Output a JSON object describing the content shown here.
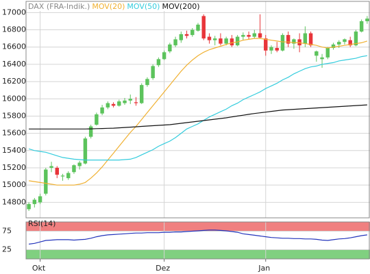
{
  "chart_data": [
    {
      "type": "candlestick",
      "categories": [
        null,
        null,
        "Okt",
        null,
        null,
        null,
        null,
        null,
        null,
        null,
        null,
        null,
        null,
        null,
        null,
        null,
        null,
        null,
        null,
        null,
        null,
        null,
        null,
        null,
        "Dez",
        null,
        null,
        null,
        null,
        null,
        null,
        null,
        null,
        null,
        null,
        null,
        null,
        null,
        null,
        null,
        null,
        null,
        "Jan",
        null,
        null,
        null,
        null,
        null,
        null,
        null,
        null,
        null,
        null,
        null,
        null,
        null,
        null,
        null,
        null,
        null,
        null
      ],
      "ohlc": {
        "name": "DAX (FRA-Indik.)",
        "color": "#888888",
        "up_color": "#5cc35c",
        "down_color": "#e8353a",
        "open": [
          14720,
          14780,
          14800,
          14900,
          15200,
          15200,
          15100,
          15080,
          15150,
          15220,
          15250,
          15560,
          15700,
          15830,
          15900,
          15940,
          15920,
          15950,
          15980,
          15960,
          15950,
          16160,
          16240,
          16390,
          16460,
          16550,
          16620,
          16680,
          16750,
          16740,
          16790,
          16960,
          16720,
          16680,
          16700,
          16640,
          16700,
          16620,
          16720,
          16740,
          16720,
          16760,
          16700,
          16560,
          16590,
          16560,
          16740,
          16640,
          16690,
          16640,
          16760,
          16500,
          16460,
          16480,
          16590,
          16630,
          16660,
          16680,
          16620,
          16780,
          16900
        ],
        "high": [
          14800,
          14850,
          14900,
          15200,
          15270,
          15220,
          15130,
          15160,
          15240,
          15280,
          15560,
          15700,
          15840,
          15930,
          15970,
          15960,
          15990,
          16010,
          16050,
          16020,
          16180,
          16250,
          16400,
          16480,
          16560,
          16650,
          16720,
          16780,
          16790,
          16820,
          16880,
          16980,
          16760,
          16730,
          16760,
          16720,
          16740,
          16740,
          16770,
          16780,
          16800,
          16980,
          16740,
          16620,
          16660,
          16760,
          16780,
          16700,
          16760,
          16840,
          16780,
          16560,
          16520,
          16600,
          16650,
          16680,
          16700,
          16720,
          16800,
          16920,
          16960
        ],
        "low": [
          14700,
          14740,
          14780,
          14880,
          15150,
          15080,
          15050,
          15060,
          15130,
          15180,
          15240,
          15540,
          15690,
          15810,
          15880,
          15900,
          15910,
          15930,
          15940,
          15920,
          15940,
          16140,
          16220,
          16370,
          16450,
          16530,
          16600,
          16650,
          16700,
          16720,
          16780,
          16680,
          16640,
          16620,
          16620,
          16620,
          16600,
          16610,
          16680,
          16690,
          16700,
          16700,
          16500,
          16520,
          16540,
          16550,
          16600,
          16580,
          16540,
          16600,
          16600,
          16430,
          16360,
          16460,
          16570,
          16590,
          16630,
          16600,
          16610,
          16770,
          16870
        ],
        "close": [
          14780,
          14830,
          14870,
          15180,
          15220,
          15120,
          15110,
          15140,
          15230,
          15260,
          15540,
          15680,
          15820,
          15900,
          15950,
          15920,
          15970,
          15980,
          16000,
          15950,
          16160,
          16230,
          16380,
          16460,
          16540,
          16630,
          16690,
          16750,
          16730,
          16800,
          16860,
          16700,
          16680,
          16700,
          16640,
          16700,
          16620,
          16720,
          16740,
          16720,
          16760,
          16710,
          16560,
          16600,
          16560,
          16740,
          16640,
          16690,
          16620,
          16760,
          16620,
          16550,
          16480,
          16590,
          16630,
          16660,
          16690,
          16620,
          16780,
          16900,
          16930
        ]
      },
      "series": [
        {
          "name": "MOV(20)",
          "color": "#f0b030",
          "values": [
            15050,
            15040,
            15030,
            15020,
            15010,
            15000,
            15000,
            15000,
            15000,
            15010,
            15030,
            15080,
            15140,
            15210,
            15290,
            15370,
            15450,
            15530,
            15610,
            15680,
            15760,
            15840,
            15920,
            16000,
            16080,
            16160,
            16240,
            16320,
            16390,
            16450,
            16500,
            16540,
            16570,
            16590,
            16610,
            16630,
            16650,
            16660,
            16680,
            16690,
            16700,
            16700,
            16690,
            16680,
            16670,
            16660,
            16660,
            16650,
            16650,
            16640,
            16630,
            16620,
            16600,
            16590,
            16600,
            16610,
            16620,
            16630,
            16640,
            16650,
            16670
          ]
        },
        {
          "name": "MOV(50)",
          "color": "#33ccdd",
          "values": [
            15420,
            15400,
            15390,
            15380,
            15360,
            15340,
            15320,
            15310,
            15300,
            15295,
            15290,
            15290,
            15290,
            15290,
            15290,
            15290,
            15290,
            15295,
            15300,
            15320,
            15350,
            15380,
            15410,
            15450,
            15480,
            15510,
            15550,
            15600,
            15650,
            15680,
            15710,
            15750,
            15790,
            15820,
            15850,
            15880,
            15920,
            15950,
            15990,
            16020,
            16050,
            16080,
            16120,
            16150,
            16180,
            16220,
            16250,
            16290,
            16320,
            16350,
            16370,
            16380,
            16400,
            16410,
            16420,
            16440,
            16450,
            16460,
            16470,
            16490,
            16500
          ]
        },
        {
          "name": "MOV(200)",
          "color": "#111111",
          "values": [
            15650,
            15650,
            15650,
            15650,
            15650,
            15650,
            15650,
            15650,
            15650,
            15650,
            15650,
            15652,
            15654,
            15656,
            15658,
            15660,
            15664,
            15668,
            15672,
            15676,
            15680,
            15684,
            15688,
            15692,
            15696,
            15700,
            15708,
            15716,
            15724,
            15732,
            15740,
            15748,
            15756,
            15764,
            15772,
            15780,
            15790,
            15800,
            15810,
            15820,
            15830,
            15838,
            15846,
            15854,
            15862,
            15870,
            15874,
            15878,
            15882,
            15886,
            15890,
            15894,
            15898,
            15902,
            15906,
            15910,
            15914,
            15918,
            15922,
            15926,
            15930
          ]
        }
      ],
      "ylim": [
        14620,
        17130
      ],
      "yticks": [
        14800,
        15000,
        15200,
        15400,
        15600,
        15800,
        16000,
        16200,
        16400,
        16600,
        16800,
        17000
      ],
      "grid": true
    },
    {
      "type": "line",
      "title": "RSI(14)",
      "series": [
        {
          "name": "RSI(14)",
          "color": "#2233bb",
          "values": [
            40,
            42,
            46,
            50,
            51,
            52,
            52,
            52,
            51,
            52,
            53,
            56,
            60,
            63,
            65,
            66,
            67,
            68,
            69,
            70,
            70,
            71,
            71,
            71,
            72,
            72,
            73,
            73,
            74,
            75,
            76,
            77,
            78,
            78,
            77,
            76,
            74,
            72,
            68,
            66,
            64,
            62,
            60,
            58,
            57,
            56,
            56,
            55,
            55,
            54,
            54,
            53,
            51,
            50,
            52,
            54,
            55,
            57,
            60,
            63,
            65
          ]
        }
      ],
      "ylim": [
        0,
        100
      ],
      "yticks": [
        25,
        75
      ],
      "upper_band_color": "#f08080",
      "lower_band_color": "#80d080",
      "grid": true
    }
  ]
}
